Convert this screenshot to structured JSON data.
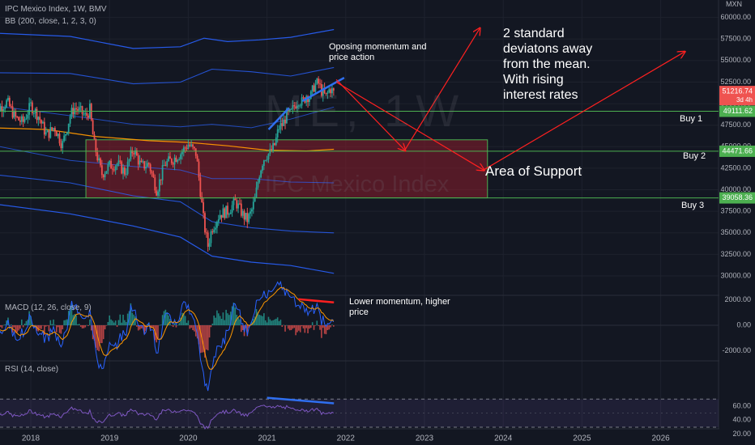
{
  "header": {
    "symbol_line": "IPC Mexico Index, 1W, BMV",
    "bb_line": "BB (200, close, 1, 2, 3, 0)",
    "macd_line": "MACD (12, 26, close, 9)",
    "rsi_line": "RSI (14, close)",
    "currency": "MXN"
  },
  "watermark": {
    "ticker": "ME, 1W",
    "name": "IPC Mexico Index"
  },
  "annotations": {
    "opposing": "Oposing momentum and\nprice action",
    "std_dev": "2 standard\ndeviatons away\nfrom the mean.\nWith rising\ninterest rates",
    "support": "Area of Support",
    "lower_momentum": "Lower momentum, higher\nprice",
    "buy1": "Buy 1",
    "buy2": "Buy 2",
    "buy3": "Buy 3"
  },
  "colors": {
    "background": "#131722",
    "up": "#26a69a",
    "down": "#ef5350",
    "bb_band": "#2962ff",
    "bb_mid": "#ff9800",
    "level": "#4caf50",
    "support_zone": "#8b1e2b",
    "arrow": "#ff2020",
    "trend": "#2f6ff0",
    "macd_line": "#2962ff",
    "signal_line": "#ff9800",
    "rsi_line": "#7e57c2"
  },
  "chart_data": {
    "type": "candlestick",
    "symbol": "IPC Mexico Index",
    "interval": "1W",
    "exchange": "BMV",
    "price_axis": {
      "ticks": [
        30000,
        32500,
        35000,
        37500,
        40000,
        42500,
        45000,
        47500,
        50000,
        52500,
        55000,
        57500,
        60000
      ],
      "tick_labels": [
        "30000.00",
        "32500.00",
        "35000.00",
        "37500.00",
        "40000.00",
        "42500.00",
        "45000.00",
        "47500.00",
        "50000.00",
        "52500.00",
        "55000.00",
        "57500.00",
        "60000.00"
      ]
    },
    "time_axis": {
      "ticks": [
        2018,
        2019,
        2020,
        2021,
        2022,
        2023,
        2024,
        2025,
        2026
      ],
      "tick_labels": [
        "2018",
        "2019",
        "2020",
        "2021",
        "2022",
        "2023",
        "2024",
        "2025",
        "2026"
      ]
    },
    "current_price": {
      "value": 51216.74,
      "label": "51216.74",
      "countdown": "3d 4h"
    },
    "levels": [
      {
        "name": "Buy 1",
        "value": 49111.62,
        "label": "49111.62"
      },
      {
        "name": "Buy 2",
        "value": 44471.66,
        "label": "44471.66"
      },
      {
        "name": "Buy 3",
        "value": 39058.36,
        "label": "39058.36"
      }
    ],
    "support_zone": {
      "x_start": 2018.7,
      "x_end": 2023.8,
      "price_low": 39058.36,
      "price_high": 45800
    },
    "price_path": [
      [
        2017.5,
        50600
      ],
      [
        2017.6,
        49500
      ],
      [
        2017.7,
        50200
      ],
      [
        2017.8,
        48400
      ],
      [
        2017.9,
        47800
      ],
      [
        2018.0,
        49800
      ],
      [
        2018.1,
        48500
      ],
      [
        2018.2,
        46300
      ],
      [
        2018.3,
        47300
      ],
      [
        2018.4,
        45200
      ],
      [
        2018.5,
        48600
      ],
      [
        2018.55,
        49500
      ],
      [
        2018.6,
        49300
      ],
      [
        2018.7,
        48500
      ],
      [
        2018.75,
        49300
      ],
      [
        2018.8,
        45500
      ],
      [
        2018.9,
        41800
      ],
      [
        2019.0,
        42800
      ],
      [
        2019.1,
        43000
      ],
      [
        2019.2,
        42000
      ],
      [
        2019.3,
        44800
      ],
      [
        2019.4,
        42700
      ],
      [
        2019.5,
        43000
      ],
      [
        2019.6,
        39900
      ],
      [
        2019.7,
        43000
      ],
      [
        2019.8,
        43500
      ],
      [
        2019.9,
        44200
      ],
      [
        2020.0,
        45300
      ],
      [
        2020.1,
        44200
      ],
      [
        2020.15,
        40200
      ],
      [
        2020.2,
        36000
      ],
      [
        2020.25,
        33500
      ],
      [
        2020.3,
        35500
      ],
      [
        2020.4,
        37200
      ],
      [
        2020.5,
        37500
      ],
      [
        2020.6,
        38600
      ],
      [
        2020.7,
        37000
      ],
      [
        2020.75,
        36500
      ],
      [
        2020.8,
        37400
      ],
      [
        2020.85,
        39000
      ],
      [
        2020.9,
        41800
      ],
      [
        2020.95,
        43500
      ],
      [
        2021.0,
        44100
      ],
      [
        2021.05,
        44300
      ],
      [
        2021.1,
        45300
      ],
      [
        2021.15,
        47200
      ],
      [
        2021.2,
        47600
      ],
      [
        2021.25,
        48700
      ],
      [
        2021.3,
        48800
      ],
      [
        2021.35,
        49800
      ],
      [
        2021.4,
        50500
      ],
      [
        2021.45,
        50100
      ],
      [
        2021.5,
        51000
      ],
      [
        2021.55,
        50700
      ],
      [
        2021.6,
        52100
      ],
      [
        2021.65,
        52400
      ],
      [
        2021.7,
        51300
      ],
      [
        2021.75,
        50800
      ],
      [
        2021.8,
        51800
      ],
      [
        2021.85,
        51216.74
      ]
    ],
    "macd": {
      "ticks": [
        -2000,
        0,
        2000
      ],
      "tick_labels": [
        "-2000.00",
        "0.00",
        "2000.00"
      ]
    },
    "rsi": {
      "ticks": [
        20,
        40,
        60
      ],
      "tick_labels": [
        "20.00",
        "40.00",
        "60.00"
      ],
      "upper_band": 70,
      "lower_band": 30
    }
  }
}
